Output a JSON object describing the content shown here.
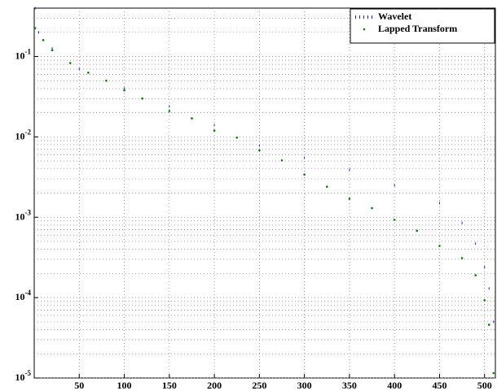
{
  "chart_data": {
    "type": "scatter",
    "series": [
      {
        "name": "Wavelet",
        "color": "#1f1fd0",
        "x": [
          1,
          5,
          20,
          50,
          100,
          150,
          200,
          250,
          300,
          350,
          400,
          450,
          475,
          490,
          500,
          505,
          510
        ],
        "values": [
          0.4,
          0.2,
          0.126,
          0.07,
          0.04,
          0.024,
          0.014,
          0.0078,
          0.0055,
          0.0039,
          0.0025,
          0.0015,
          0.00085,
          0.00047,
          0.00024,
          0.00013,
          5e-05
        ]
      },
      {
        "name": "Lapped Transform",
        "color": "#007a00",
        "x": [
          1,
          10,
          20,
          40,
          60,
          80,
          100,
          120,
          150,
          175,
          200,
          225,
          250,
          275,
          300,
          325,
          350,
          375,
          400,
          425,
          450,
          475,
          490,
          500,
          505,
          510
        ],
        "values": [
          0.226,
          0.16,
          0.12,
          0.083,
          0.063,
          0.05,
          0.038,
          0.03,
          0.021,
          0.017,
          0.012,
          0.0098,
          0.0068,
          0.0051,
          0.0034,
          0.0024,
          0.0017,
          0.0013,
          0.00093,
          0.00068,
          0.00044,
          0.00031,
          0.00019,
          9.3e-05,
          4.6e-05,
          1.15e-05
        ]
      }
    ],
    "xlim": [
      0,
      512
    ],
    "xticks": [
      50,
      100,
      150,
      200,
      250,
      300,
      350,
      400,
      450,
      500
    ],
    "ylim": [
      1e-05,
      0.4
    ],
    "log_y": true,
    "yticks": [
      {
        "value": 0.1,
        "label": "10^-1"
      },
      {
        "value": 0.01,
        "label": "10^-2"
      },
      {
        "value": 0.001,
        "label": "10^-3"
      },
      {
        "value": 0.0001,
        "label": "10^-4"
      },
      {
        "value": 1e-05,
        "label": "10^-5"
      }
    ],
    "grid": true,
    "legend": "top-right"
  }
}
